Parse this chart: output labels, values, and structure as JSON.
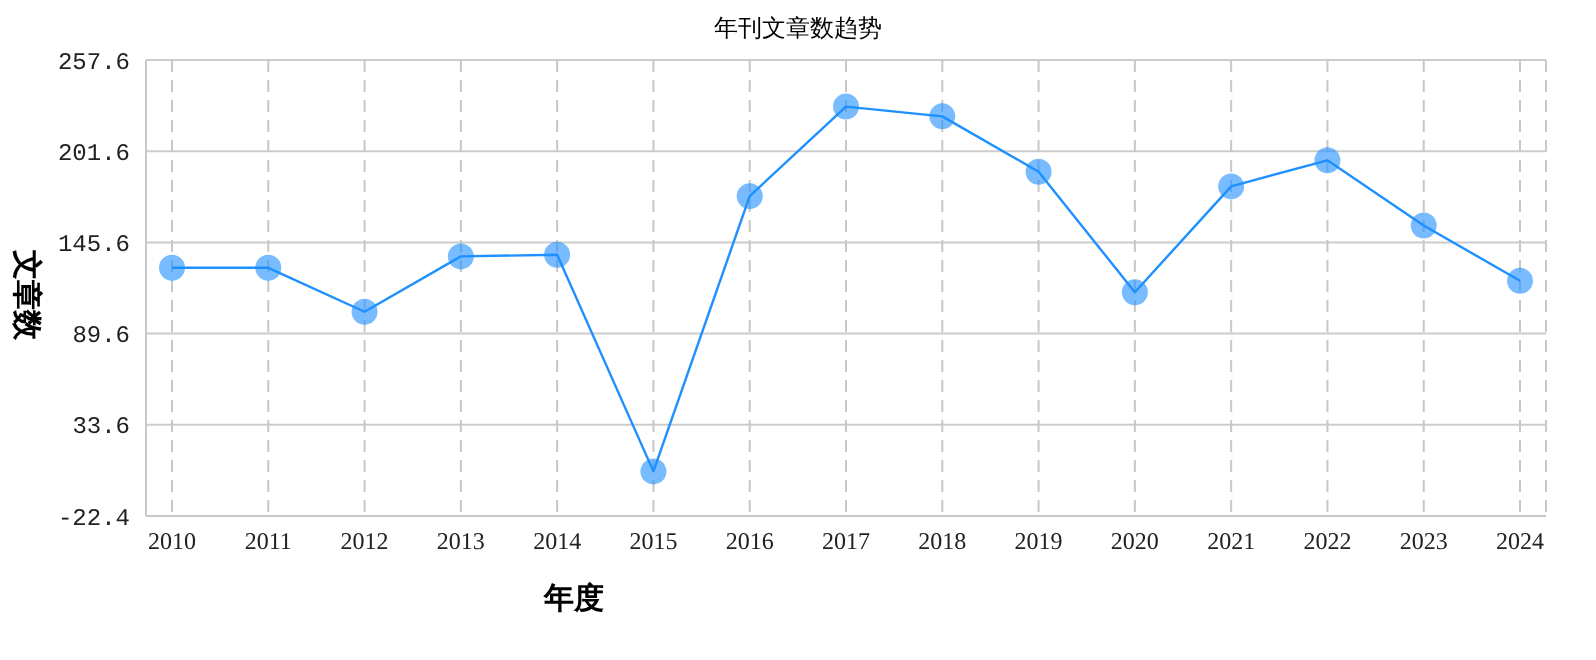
{
  "chart_data": {
    "type": "line",
    "title": "年刊文章数趋势",
    "xlabel": "年度",
    "ylabel": "文章数",
    "categories": [
      "2010",
      "2011",
      "2012",
      "2013",
      "2014",
      "2015",
      "2016",
      "2017",
      "2018",
      "2019",
      "2020",
      "2021",
      "2022",
      "2023",
      "2024"
    ],
    "series": [
      {
        "color": "#1e90ff",
        "values": [
          130,
          130,
          103,
          137,
          138,
          5,
          174,
          229,
          223,
          189,
          115,
          180,
          196,
          156,
          122
        ]
      }
    ],
    "ylim": [
      -22.4,
      257.6
    ],
    "yticks": [
      -22.4,
      33.6,
      89.6,
      145.6,
      201.6,
      257.6
    ],
    "grid": true,
    "marker": "circle",
    "line_style": "solid",
    "legend": false
  }
}
